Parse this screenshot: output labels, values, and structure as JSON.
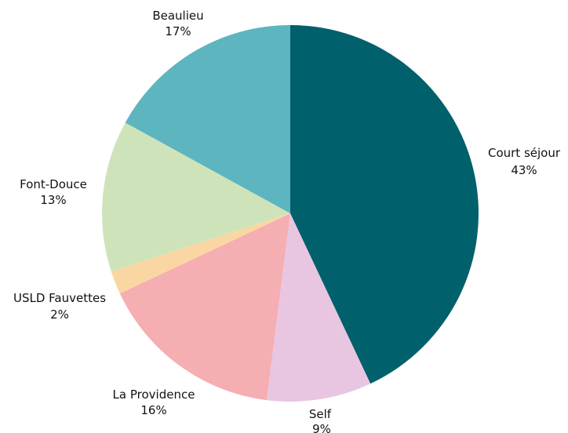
{
  "chart_data": {
    "type": "pie",
    "start_angle_deg": 0,
    "direction": "clockwise",
    "slices": [
      {
        "label": "Court séjour",
        "value": 43,
        "pct_label": "43%",
        "color": "#00606b"
      },
      {
        "label": "Self",
        "value": 9,
        "pct_label": "9%",
        "color": "#e8c6e1"
      },
      {
        "label": "La Providence",
        "value": 16,
        "pct_label": "16%",
        "color": "#f5aeb1"
      },
      {
        "label": "USLD Fauvettes",
        "value": 2,
        "pct_label": "2%",
        "color": "#fad7a2"
      },
      {
        "label": "Font-Douce",
        "value": 13,
        "pct_label": "13%",
        "color": "#cfe3bb"
      },
      {
        "label": "Beaulieu",
        "value": 17,
        "pct_label": "17%",
        "color": "#5db5bf"
      }
    ]
  }
}
